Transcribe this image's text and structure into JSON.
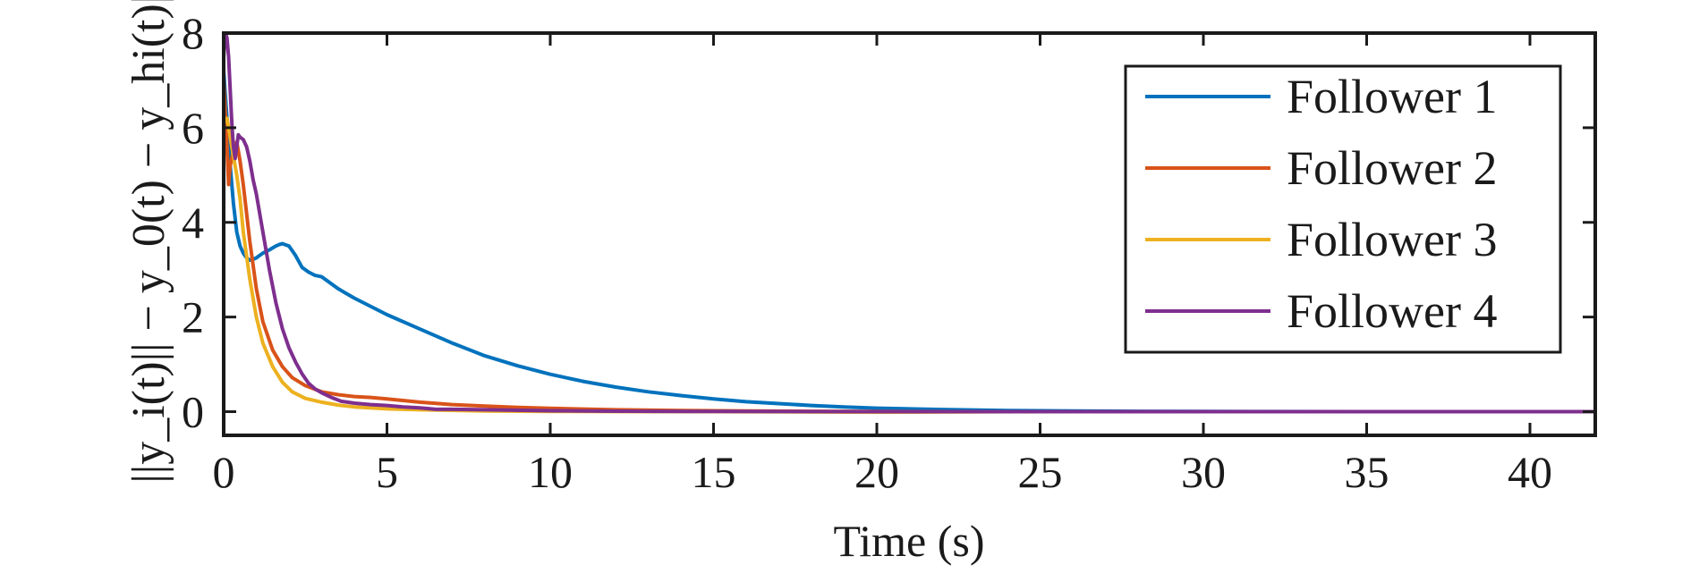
{
  "chart_data": {
    "type": "line",
    "xlabel": "Time (s)",
    "ylabel": "||y_i(t)|| − y_0(t) − y_hi(t)||",
    "xlim": [
      0,
      42
    ],
    "ylim": [
      -0.5,
      8
    ],
    "xticks": [
      0,
      5,
      10,
      15,
      20,
      25,
      30,
      35,
      40
    ],
    "yticks": [
      0,
      2,
      4,
      6,
      8
    ],
    "grid": false,
    "legend_position": "top-right",
    "series": [
      {
        "name": "Follower 1",
        "color": "#0072BD",
        "points": [
          [
            0,
            7.2
          ],
          [
            0.1,
            6.2
          ],
          [
            0.2,
            5.2
          ],
          [
            0.3,
            4.4
          ],
          [
            0.4,
            3.8
          ],
          [
            0.5,
            3.5
          ],
          [
            0.6,
            3.35
          ],
          [
            0.7,
            3.25
          ],
          [
            0.8,
            3.2
          ],
          [
            0.9,
            3.22
          ],
          [
            1.0,
            3.25
          ],
          [
            1.1,
            3.3
          ],
          [
            1.2,
            3.35
          ],
          [
            1.4,
            3.42
          ],
          [
            1.6,
            3.5
          ],
          [
            1.7,
            3.53
          ],
          [
            1.8,
            3.55
          ],
          [
            2.0,
            3.5
          ],
          [
            2.2,
            3.3
          ],
          [
            2.4,
            3.05
          ],
          [
            2.6,
            2.95
          ],
          [
            2.8,
            2.88
          ],
          [
            3.0,
            2.85
          ],
          [
            3.5,
            2.6
          ],
          [
            4,
            2.4
          ],
          [
            5,
            2.05
          ],
          [
            6,
            1.75
          ],
          [
            7,
            1.45
          ],
          [
            8,
            1.18
          ],
          [
            9,
            0.97
          ],
          [
            10,
            0.79
          ],
          [
            11,
            0.64
          ],
          [
            12,
            0.52
          ],
          [
            13,
            0.42
          ],
          [
            14,
            0.34
          ],
          [
            15,
            0.27
          ],
          [
            16,
            0.21
          ],
          [
            17,
            0.17
          ],
          [
            18,
            0.13
          ],
          [
            19,
            0.1
          ],
          [
            20,
            0.075
          ],
          [
            22,
            0.045
          ],
          [
            24,
            0.025
          ],
          [
            26,
            0.015
          ],
          [
            28,
            0.008
          ],
          [
            30,
            0.004
          ],
          [
            32,
            0.002
          ],
          [
            35,
            0.001
          ],
          [
            40,
            0.0
          ],
          [
            42,
            0.0
          ]
        ]
      },
      {
        "name": "Follower 2",
        "color": "#D95319",
        "points": [
          [
            0,
            7.0
          ],
          [
            0.1,
            5.6
          ],
          [
            0.15,
            4.8
          ],
          [
            0.2,
            5.2
          ],
          [
            0.3,
            5.5
          ],
          [
            0.4,
            5.7
          ],
          [
            0.5,
            5.3
          ],
          [
            0.6,
            4.8
          ],
          [
            0.8,
            3.6
          ],
          [
            1.0,
            2.6
          ],
          [
            1.2,
            1.9
          ],
          [
            1.5,
            1.3
          ],
          [
            1.8,
            0.95
          ],
          [
            2.1,
            0.72
          ],
          [
            2.5,
            0.55
          ],
          [
            3,
            0.42
          ],
          [
            3.5,
            0.36
          ],
          [
            4,
            0.32
          ],
          [
            4.5,
            0.3
          ],
          [
            5,
            0.27
          ],
          [
            6,
            0.2
          ],
          [
            7,
            0.15
          ],
          [
            8,
            0.12
          ],
          [
            9,
            0.09
          ],
          [
            10,
            0.07
          ],
          [
            12,
            0.04
          ],
          [
            14,
            0.025
          ],
          [
            16,
            0.015
          ],
          [
            18,
            0.008
          ],
          [
            20,
            0.004
          ],
          [
            25,
            0.001
          ],
          [
            30,
            0.0
          ],
          [
            42,
            0.0
          ]
        ]
      },
      {
        "name": "Follower 3",
        "color": "#EDB120",
        "points": [
          [
            0,
            6.1
          ],
          [
            0.1,
            6.2
          ],
          [
            0.2,
            5.8
          ],
          [
            0.3,
            5.4
          ],
          [
            0.4,
            5.0
          ],
          [
            0.5,
            4.5
          ],
          [
            0.6,
            3.8
          ],
          [
            0.8,
            2.8
          ],
          [
            1.0,
            2.0
          ],
          [
            1.2,
            1.45
          ],
          [
            1.5,
            0.95
          ],
          [
            1.8,
            0.62
          ],
          [
            2.1,
            0.42
          ],
          [
            2.5,
            0.28
          ],
          [
            3,
            0.2
          ],
          [
            3.5,
            0.14
          ],
          [
            4,
            0.1
          ],
          [
            5,
            0.06
          ],
          [
            6,
            0.04
          ],
          [
            8,
            0.015
          ],
          [
            10,
            0.006
          ],
          [
            12,
            0.002
          ],
          [
            15,
            0.0
          ],
          [
            20,
            -0.01
          ],
          [
            25,
            0.0
          ],
          [
            30,
            0.0
          ],
          [
            42,
            0.0
          ]
        ]
      },
      {
        "name": "Follower 4",
        "color": "#7E2F8E",
        "points": [
          [
            0,
            7.5
          ],
          [
            0.05,
            8.0
          ],
          [
            0.1,
            7.9
          ],
          [
            0.15,
            7.5
          ],
          [
            0.2,
            6.8
          ],
          [
            0.25,
            6.1
          ],
          [
            0.3,
            5.6
          ],
          [
            0.35,
            5.35
          ],
          [
            0.4,
            5.6
          ],
          [
            0.45,
            5.85
          ],
          [
            0.5,
            5.8
          ],
          [
            0.6,
            5.75
          ],
          [
            0.7,
            5.6
          ],
          [
            0.8,
            5.3
          ],
          [
            0.9,
            4.9
          ],
          [
            1.0,
            4.6
          ],
          [
            1.2,
            3.8
          ],
          [
            1.4,
            3.0
          ],
          [
            1.6,
            2.3
          ],
          [
            1.8,
            1.75
          ],
          [
            2.0,
            1.35
          ],
          [
            2.2,
            1.05
          ],
          [
            2.4,
            0.8
          ],
          [
            2.6,
            0.6
          ],
          [
            2.8,
            0.48
          ],
          [
            3.0,
            0.4
          ],
          [
            3.3,
            0.3
          ],
          [
            3.6,
            0.22
          ],
          [
            4,
            0.18
          ],
          [
            4.5,
            0.15
          ],
          [
            5,
            0.13
          ],
          [
            5.5,
            0.1
          ],
          [
            6,
            0.08
          ],
          [
            6.5,
            0.05
          ],
          [
            7,
            0.05
          ],
          [
            8,
            0.04
          ],
          [
            10,
            0.02
          ],
          [
            12,
            0.01
          ],
          [
            15,
            0.005
          ],
          [
            20,
            0.0
          ],
          [
            42,
            0.0
          ]
        ]
      }
    ]
  }
}
